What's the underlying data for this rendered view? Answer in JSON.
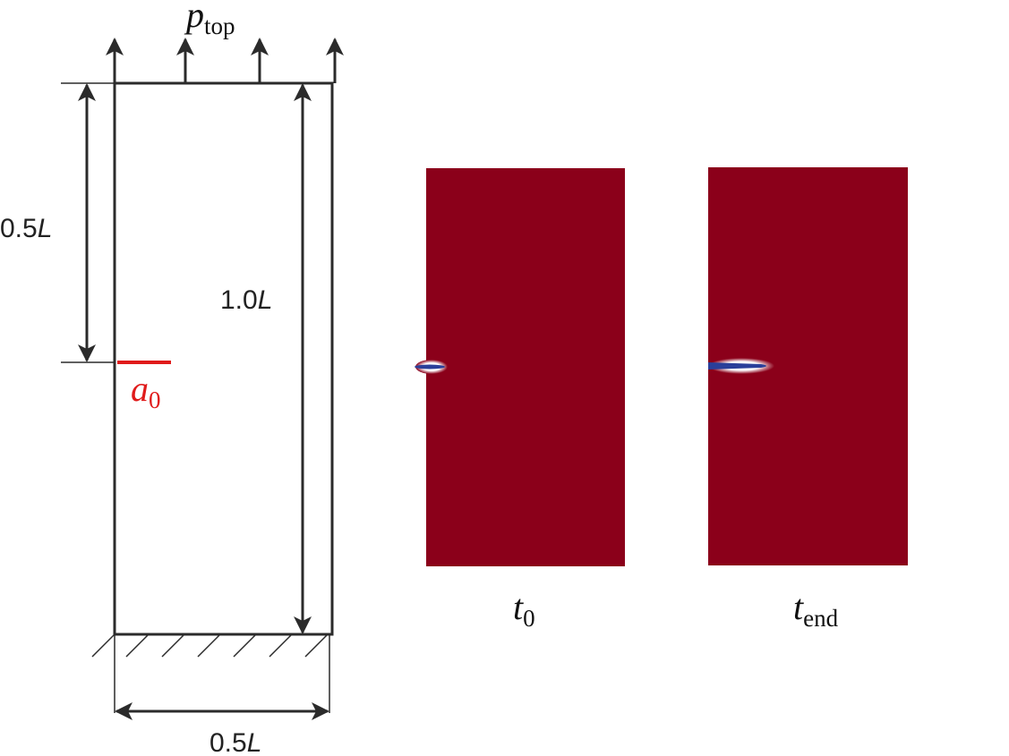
{
  "load_label": {
    "symbol": "p",
    "subscript": "top"
  },
  "height_half_label": {
    "number": "0.5",
    "unit": "L"
  },
  "height_full_label": {
    "number": "1.0",
    "unit": "L"
  },
  "crack_label": {
    "symbol": "a",
    "subscript": "0"
  },
  "width_label": {
    "number": "0.5",
    "unit": "L"
  },
  "panels": [
    {
      "symbol": "t",
      "subscript": "0"
    },
    {
      "symbol": "t",
      "subscript": "end"
    }
  ]
}
